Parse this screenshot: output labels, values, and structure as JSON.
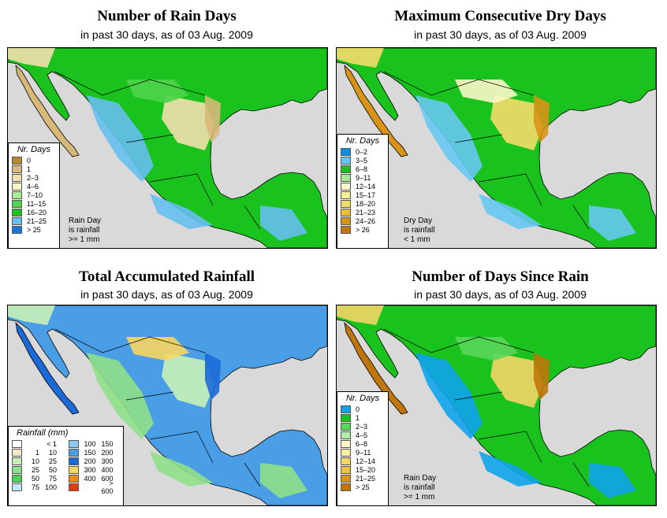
{
  "panels": [
    {
      "title": "Number of Rain Days",
      "subtitle": "in past 30 days, as of  03 Aug. 2009",
      "legend_title": "Nr. Days",
      "legend": [
        {
          "label": "0",
          "color": "#b8862b"
        },
        {
          "label": "1",
          "color": "#d9b97a"
        },
        {
          "label": "2–3",
          "color": "#f2dfae"
        },
        {
          "label": "4–6",
          "color": "#fbf6c8"
        },
        {
          "label": "7–10",
          "color": "#a8e89a"
        },
        {
          "label": "11–15",
          "color": "#4fd44a"
        },
        {
          "label": "16–20",
          "color": "#19c21c"
        },
        {
          "label": "21–25",
          "color": "#66bff0"
        },
        {
          "label": "> 25",
          "color": "#1877d6"
        }
      ],
      "note": [
        "Rain Day",
        "is rainfall",
        ">= 1 mm"
      ]
    },
    {
      "title": "Maximum Consecutive Dry Days",
      "subtitle": "in past 30 days, as of  03 Aug. 2009",
      "legend_title": "Nr. Days",
      "legend": [
        {
          "label": "0–2",
          "color": "#0a8fe6"
        },
        {
          "label": "3–5",
          "color": "#66c8f2"
        },
        {
          "label": "6–8",
          "color": "#19c21c"
        },
        {
          "label": "9–11",
          "color": "#a8e89a"
        },
        {
          "label": "12–14",
          "color": "#fbf7c8"
        },
        {
          "label": "15–17",
          "color": "#f7ee9a"
        },
        {
          "label": "18–20",
          "color": "#f3dc6a"
        },
        {
          "label": "21–23",
          "color": "#eebe3a"
        },
        {
          "label": "24–26",
          "color": "#d99418"
        },
        {
          "label": "> 26",
          "color": "#c0760a"
        }
      ],
      "note": [
        "Dry Day",
        "is rainfall",
        "< 1 mm"
      ]
    },
    {
      "title": "Total Accumulated Rainfall",
      "subtitle": "in past 30 days, as of  03 Aug. 2009",
      "legend_title": "Rainfall (mm)",
      "legend_left": [
        {
          "a": "",
          "b": "< 1",
          "color": "#ffffff"
        },
        {
          "a": "1",
          "b": "10",
          "color": "#f2e4c4"
        },
        {
          "a": "10",
          "b": "25",
          "color": "#c9f0b8"
        },
        {
          "a": "25",
          "b": "50",
          "color": "#8fe08a"
        },
        {
          "a": "50",
          "b": "75",
          "color": "#4fcf55"
        },
        {
          "a": "75",
          "b": "100",
          "color": "#bfe8f8"
        }
      ],
      "legend_right": [
        {
          "a": "100",
          "b": "150",
          "color": "#8cc8f2"
        },
        {
          "a": "150",
          "b": "200",
          "color": "#4a9ee6"
        },
        {
          "a": "200",
          "b": "300",
          "color": "#1c6ad8"
        },
        {
          "a": "300",
          "b": "400",
          "color": "#f7d560"
        },
        {
          "a": "400",
          "b": "600",
          "color": "#f08a1c"
        },
        {
          "a": "",
          "b": "> 600",
          "color": "#e83a10"
        }
      ]
    },
    {
      "title": "Number of Days Since Rain",
      "subtitle": "in past 30 days, as of  03 Aug. 2009",
      "legend_title": "Nr. Days",
      "legend": [
        {
          "label": "0",
          "color": "#10a3ec"
        },
        {
          "label": "1",
          "color": "#19c21c"
        },
        {
          "label": "2–3",
          "color": "#5ad65a"
        },
        {
          "label": "4–5",
          "color": "#b2ecaa"
        },
        {
          "label": "6–8",
          "color": "#fbf7c8"
        },
        {
          "label": "9–11",
          "color": "#f8ec9e"
        },
        {
          "label": "12–14",
          "color": "#f3d566"
        },
        {
          "label": "15–20",
          "color": "#ecc040"
        },
        {
          "label": "21–25",
          "color": "#d99420"
        },
        {
          "label": "> 25",
          "color": "#c0760a"
        }
      ],
      "note": [
        "Rain Day",
        "is rainfall",
        ">= 1 mm"
      ]
    }
  ],
  "map_colors": {
    "ocean": "#d9d9d9",
    "p0": {
      "base": "#19c21c",
      "a": "#66bff0",
      "b": "#d9b97a",
      "c": "#f2dfae",
      "d": "#4fd44a"
    },
    "p1": {
      "base": "#19c21c",
      "a": "#66c8f2",
      "b": "#d99418",
      "c": "#f3dc6a",
      "d": "#fbf7c8"
    },
    "p2": {
      "base": "#4a9ee6",
      "a": "#8fe08a",
      "b": "#1c6ad8",
      "c": "#c9f0b8",
      "d": "#f7d560"
    },
    "p3": {
      "base": "#19c21c",
      "a": "#10a3ec",
      "b": "#c0760a",
      "c": "#f3d566",
      "d": "#5ad65a"
    }
  }
}
